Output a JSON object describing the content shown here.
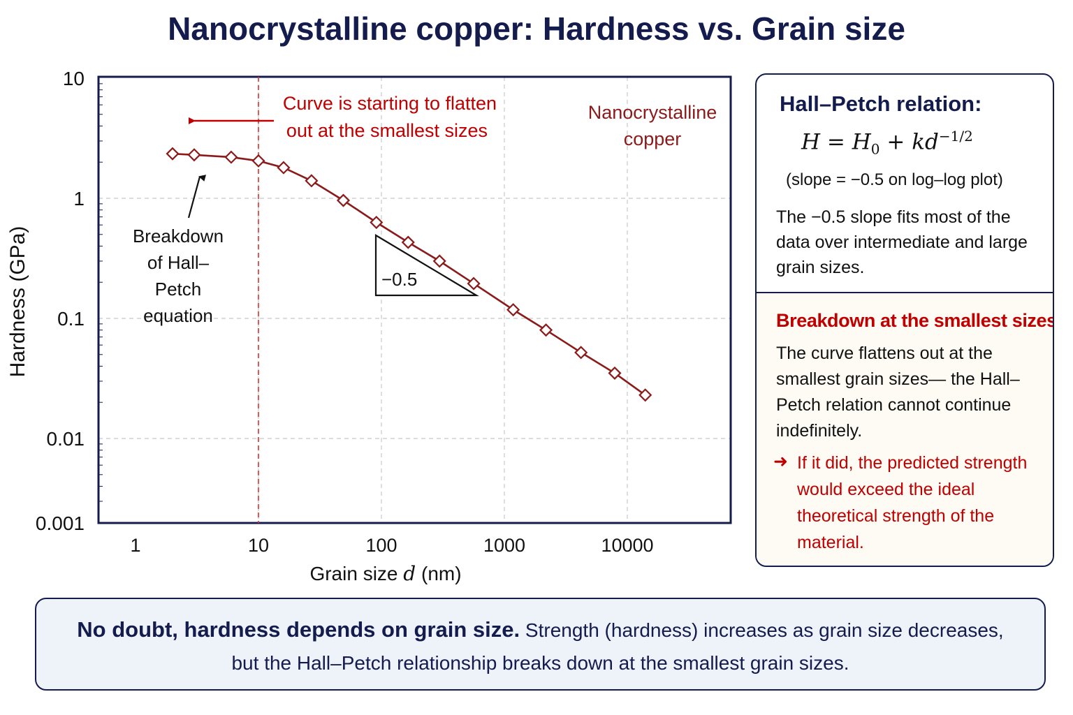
{
  "title": "Nanocrystalline copper: Hardness vs. Grain size",
  "colors": {
    "navy": "#141b4d",
    "series": "#8b1a1a",
    "accent_red": "#c00000",
    "grid": "#c8c8c8",
    "panel_bottom_bg": "#fdfbf3",
    "footer_bg": "#eef3fa"
  },
  "chart_data": {
    "type": "line",
    "x_scale": "log",
    "y_scale": "log",
    "xlabel_prefix": "Grain size",
    "xlabel_var": "d",
    "xlabel_unit": "(nm)",
    "ylabel": "Hardness (GPa)",
    "xlim": [
      1,
      20000
    ],
    "ylim": [
      0.001,
      10
    ],
    "x_ticks": [
      "1",
      "10",
      "100",
      "1000",
      "10000"
    ],
    "y_ticks": [
      "10",
      "1",
      "0.1",
      "0.01",
      "0.001"
    ],
    "grid": true,
    "series": [
      {
        "name": "Nanocrystalline copper",
        "marker": "diamond-open",
        "x": [
          2,
          3,
          6,
          10,
          16,
          27,
          49,
          91,
          165,
          297,
          563,
          1180,
          2180,
          4200,
          7900,
          14000
        ],
        "y": [
          2.35,
          2.3,
          2.2,
          2.05,
          1.8,
          1.4,
          0.96,
          0.63,
          0.43,
          0.3,
          0.195,
          0.118,
          0.08,
          0.052,
          0.035,
          0.023
        ]
      }
    ],
    "series_label": [
      "Nanocrystalline",
      "copper"
    ],
    "reference_line_x": 10,
    "annotations": {
      "flatten": [
        "Curve is starting to flatten",
        "out at the smallest sizes"
      ],
      "breakdown": [
        "Breakdown",
        "of Hall–",
        "Petch",
        "equation"
      ],
      "slope_label": "−0.5"
    }
  },
  "panel": {
    "hall_petch_title": "Hall–Petch relation:",
    "formula": {
      "h": "H",
      "eq": " = ",
      "h0": "H",
      "h0_sub": "0",
      "plus": " + ",
      "kd": "kd",
      "exp": "−1/2"
    },
    "slope_note": "(slope = −0.5 on log–log plot)",
    "fit_note": "The −0.5 slope fits most of the data over intermediate and large grain sizes.",
    "breakdown_title": "Breakdown at the smallest sizes:",
    "breakdown_text": "The curve flattens out at the smallest grain sizes— the Hall–Petch relation cannot continue indefinitely.",
    "arrow": "➜",
    "breakdown_note": "If it did, the predicted strength would exceed the ideal theoretical strength of the material."
  },
  "footer": {
    "bold": "No doubt, hardness depends on grain size.",
    "rest": " Strength (hardness) increases as grain size decreases,",
    "line2": "but the Hall–Petch relationship breaks down at the smallest grain sizes."
  }
}
